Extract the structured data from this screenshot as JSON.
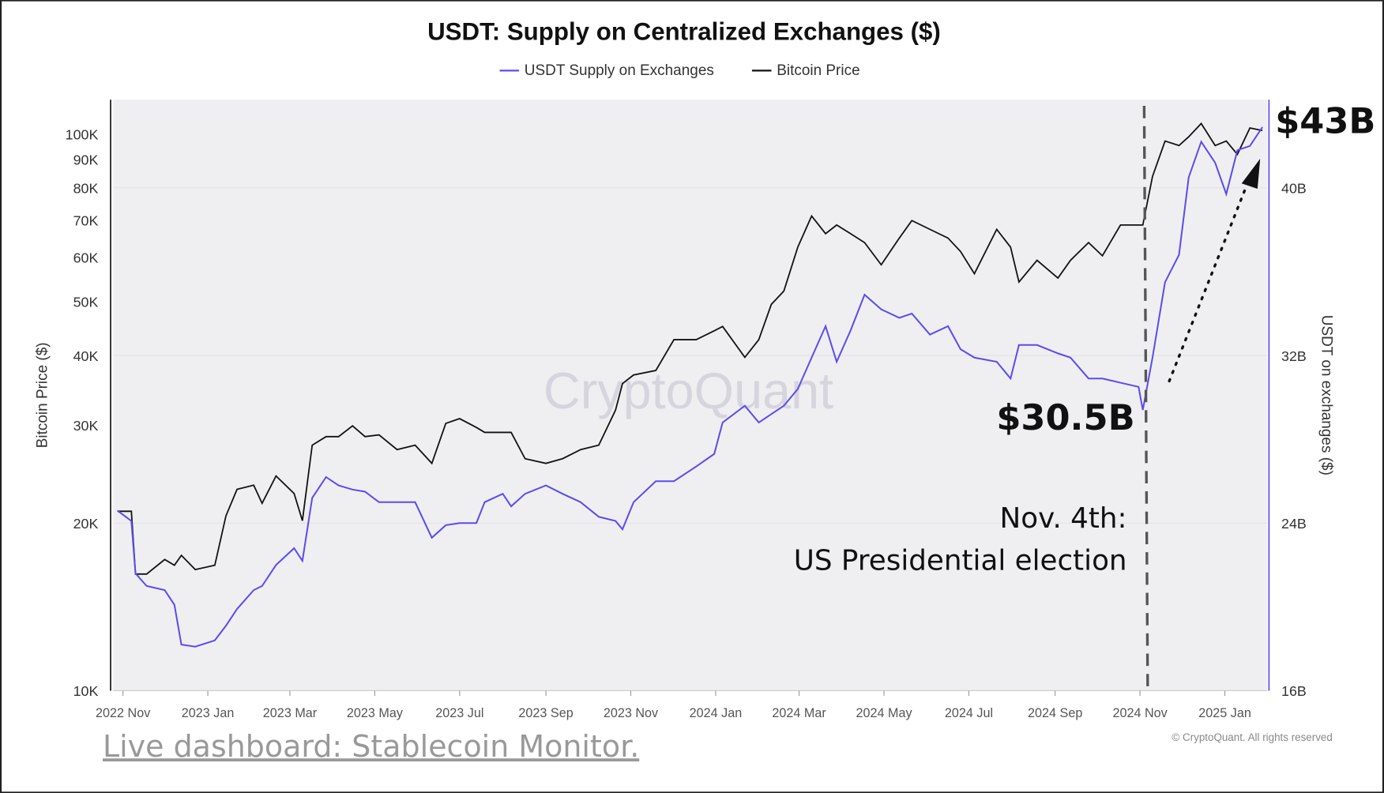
{
  "chart_data": {
    "type": "line",
    "title": "USDT: Supply on Centralized Exchanges ($)",
    "legend": {
      "placement": "top",
      "entries": [
        "USDT Supply on Exchanges",
        "Bitcoin Price"
      ]
    },
    "ylabel_left": "Bitcoin Price ($)",
    "ylabel_right": "USDT on exchanges ($)",
    "left_axis": {
      "scale": "log",
      "range": [
        10000,
        120000
      ],
      "ticks": [
        10000,
        20000,
        30000,
        40000,
        50000,
        60000,
        70000,
        80000,
        90000,
        100000
      ],
      "tick_labels": [
        "10K",
        "20K",
        "30K",
        "40K",
        "50K",
        "60K",
        "70K",
        "80K",
        "90K",
        "100K"
      ]
    },
    "right_axis": {
      "scale": "linear",
      "range": [
        16,
        44
      ],
      "ticks": [
        16,
        24,
        32,
        40
      ],
      "tick_labels": [
        "16B",
        "24B",
        "32B",
        "40B"
      ]
    },
    "x_axis": {
      "type": "date",
      "range": [
        "2022-11-01",
        "2025-02-05"
      ],
      "ticks": [
        "2022-11-01",
        "2023-01-01",
        "2023-03-01",
        "2023-05-01",
        "2023-07-01",
        "2023-09-01",
        "2023-11-01",
        "2024-01-01",
        "2024-03-01",
        "2024-05-01",
        "2024-07-01",
        "2024-09-01",
        "2024-11-01",
        "2025-01-01"
      ],
      "tick_labels": [
        "2022 Nov",
        "2023 Jan",
        "2023 Mar",
        "2023 May",
        "2023 Jul",
        "2023 Sep",
        "2023 Nov",
        "2024 Jan",
        "2024 Mar",
        "2024 May",
        "2024 Jul",
        "2024 Sep",
        "2024 Nov",
        "2025 Jan"
      ]
    },
    "grid": true,
    "dates": [
      "2022-10-28",
      "2022-11-07",
      "2022-11-10",
      "2022-11-18",
      "2022-12-01",
      "2022-12-08",
      "2022-12-13",
      "2022-12-23",
      "2023-01-06",
      "2023-01-14",
      "2023-01-22",
      "2023-02-03",
      "2023-02-09",
      "2023-02-19",
      "2023-03-04",
      "2023-03-10",
      "2023-03-17",
      "2023-03-27",
      "2023-04-05",
      "2023-04-15",
      "2023-04-24",
      "2023-05-04",
      "2023-05-17",
      "2023-05-30",
      "2023-06-11",
      "2023-06-21",
      "2023-07-01",
      "2023-07-13",
      "2023-07-19",
      "2023-08-01",
      "2023-08-07",
      "2023-08-17",
      "2023-09-01",
      "2023-09-13",
      "2023-09-26",
      "2023-10-09",
      "2023-10-21",
      "2023-10-26",
      "2023-11-03",
      "2023-11-19",
      "2023-12-02",
      "2023-12-18",
      "2023-12-31",
      "2024-01-06",
      "2024-01-22",
      "2024-02-01",
      "2024-02-10",
      "2024-02-19",
      "2024-02-29",
      "2024-03-10",
      "2024-03-20",
      "2024-03-28",
      "2024-04-07",
      "2024-04-17",
      "2024-04-29",
      "2024-05-12",
      "2024-05-21",
      "2024-06-03",
      "2024-06-16",
      "2024-06-25",
      "2024-07-05",
      "2024-07-21",
      "2024-07-31",
      "2024-08-06",
      "2024-08-19",
      "2024-09-03",
      "2024-09-12",
      "2024-09-25",
      "2024-10-05",
      "2024-10-18",
      "2024-10-31",
      "2024-11-03",
      "2024-11-10",
      "2024-11-19",
      "2024-11-29",
      "2024-12-06",
      "2024-12-15",
      "2024-12-25",
      "2025-01-02",
      "2025-01-10",
      "2025-01-19",
      "2025-01-28"
    ],
    "series": [
      {
        "name": "USDT Supply on Exchanges",
        "color": "#5b4bf0",
        "unit": "B USD",
        "axis": "right",
        "values": [
          24.6,
          24.1,
          21.6,
          21.0,
          20.8,
          20.1,
          18.2,
          18.1,
          18.4,
          19.1,
          19.9,
          20.8,
          21.0,
          22.0,
          22.8,
          22.2,
          25.2,
          26.2,
          25.8,
          25.6,
          25.5,
          25.0,
          25.0,
          25.0,
          23.3,
          23.9,
          24.0,
          24.0,
          25.0,
          25.4,
          24.8,
          25.4,
          25.8,
          25.4,
          25.0,
          24.3,
          24.1,
          23.7,
          25.0,
          26.0,
          26.0,
          26.7,
          27.3,
          28.8,
          29.6,
          28.8,
          29.2,
          29.6,
          30.4,
          31.9,
          33.4,
          31.7,
          33.2,
          34.9,
          34.2,
          33.8,
          34.0,
          33.0,
          33.4,
          32.3,
          31.9,
          31.7,
          30.9,
          32.5,
          32.5,
          32.1,
          31.9,
          30.9,
          30.9,
          30.7,
          30.5,
          29.4,
          31.9,
          35.5,
          36.8,
          40.5,
          42.2,
          41.2,
          39.7,
          41.8,
          42.0,
          42.9
        ]
      },
      {
        "name": "Bitcoin Price",
        "color": "#111111",
        "unit": "USD",
        "axis": "left",
        "values": [
          21000,
          21000,
          16200,
          16200,
          17200,
          16800,
          17500,
          16500,
          16800,
          20600,
          23000,
          23400,
          21700,
          24300,
          22600,
          20200,
          27600,
          28600,
          28600,
          29900,
          28600,
          28800,
          27100,
          27600,
          25600,
          30200,
          30800,
          29700,
          29100,
          29100,
          29100,
          26100,
          25600,
          26100,
          27100,
          27600,
          31900,
          35600,
          36900,
          37600,
          42700,
          42700,
          44300,
          45100,
          39700,
          42700,
          49400,
          52200,
          62600,
          71200,
          66200,
          68600,
          66200,
          63800,
          58200,
          65000,
          69900,
          67400,
          65000,
          61500,
          56100,
          67400,
          62600,
          54200,
          59300,
          55100,
          59300,
          63800,
          60400,
          68600,
          68600,
          68600,
          83900,
          97100,
          95300,
          98800,
          104400,
          95300,
          97100,
          91900,
          102500,
          101400
        ]
      }
    ],
    "annotations": {
      "start_value": "$30.5B",
      "end_value": "$43B",
      "event_line": "Nov. 4th:",
      "event_text": "US Presidential election",
      "event_date": "2024-11-04"
    },
    "watermark": "CryptoQuant",
    "copyright": "© CryptoQuant. All rights reserved"
  },
  "footer": {
    "link_text": "Live dashboard: Stablecoin Monitor."
  }
}
